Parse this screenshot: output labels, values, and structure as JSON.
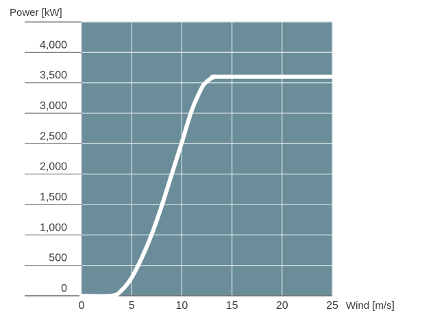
{
  "chart_data": {
    "type": "line",
    "title": "",
    "ylabel": "Power [kW]",
    "xlabel": "Wind [m/s]",
    "xlim": [
      0,
      25
    ],
    "ylim": [
      0,
      4500
    ],
    "grid": true,
    "x_ticks": [
      "0",
      "5",
      "10",
      "15",
      "20",
      "25"
    ],
    "y_ticks": [
      "0",
      "500",
      "1,000",
      "1,500",
      "2,000",
      "2,500",
      "3,000",
      "3,500",
      "4,000"
    ],
    "series": [
      {
        "x": [
          0,
          3,
          4,
          5,
          6,
          7,
          8,
          9,
          10,
          11,
          12,
          12.5,
          13,
          13.5,
          14,
          25
        ],
        "y": [
          0,
          0,
          90,
          300,
          620,
          1010,
          1480,
          2000,
          2520,
          3050,
          3420,
          3520,
          3580,
          3600,
          3600,
          3600
        ]
      }
    ],
    "colors": {
      "plot_background": "#6a8d99",
      "grid": "#d3dfe3",
      "line": "#ffffff",
      "axis": "#6f6f6f",
      "text": "#3b3b3b"
    }
  }
}
